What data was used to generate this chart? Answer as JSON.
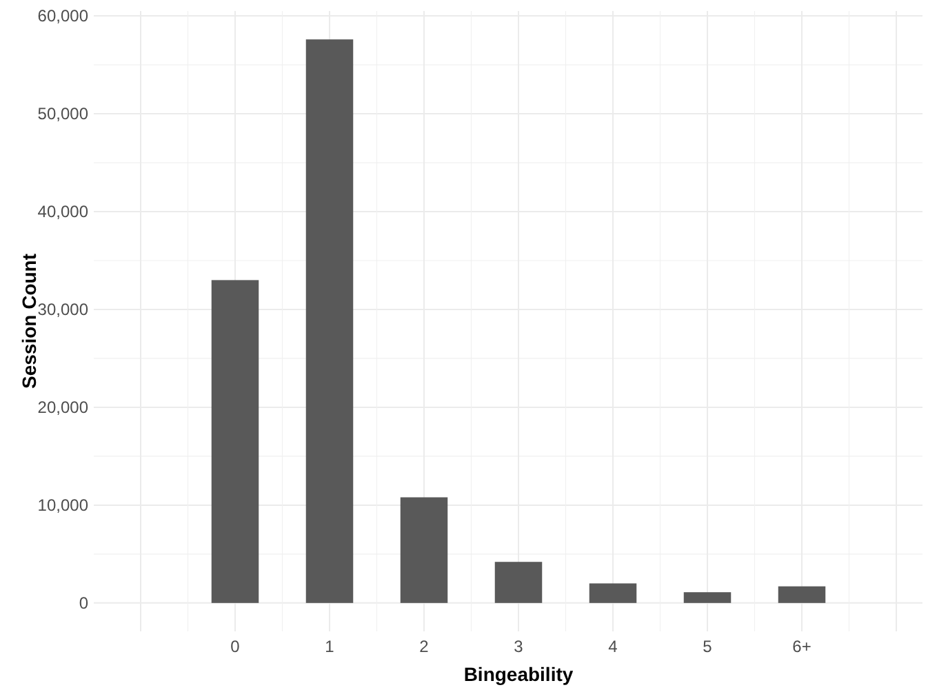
{
  "chart_data": {
    "type": "bar",
    "xlabel": "Bingeability",
    "ylabel": "Session Count",
    "categories": [
      null,
      "0",
      "1",
      "2",
      "3",
      "4",
      "5",
      "6+",
      null
    ],
    "values": [
      null,
      33000,
      57600,
      10800,
      4200,
      2000,
      1100,
      1700,
      null
    ],
    "color": "#595959",
    "ylim": [
      -2900,
      60500
    ],
    "yticks": [
      {
        "value": 0,
        "label": "0"
      },
      {
        "value": 10000,
        "label": "10,000"
      },
      {
        "value": 20000,
        "label": "20,000"
      },
      {
        "value": 30000,
        "label": "30,000"
      },
      {
        "value": 40000,
        "label": "40,000"
      },
      {
        "value": 50000,
        "label": "50,000"
      },
      {
        "value": 60000,
        "label": "60,000"
      }
    ],
    "grid": true
  }
}
